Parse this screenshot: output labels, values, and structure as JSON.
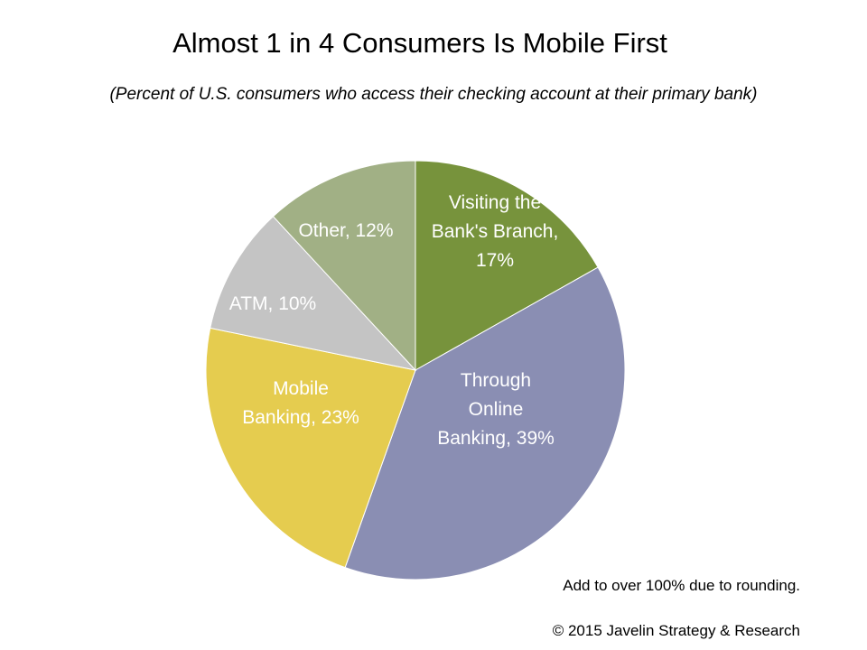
{
  "chart_data": {
    "type": "pie",
    "title": "Almost 1 in 4 Consumers Is Mobile First",
    "subtitle": "(Percent of U.S. consumers who access their checking account at their primary bank)",
    "unit": "%",
    "slices": [
      {
        "label": "Visiting the Bank's Branch",
        "value": 17,
        "color": "#77933c",
        "display": [
          "Visiting the",
          "Bank's Branch,",
          "17%"
        ]
      },
      {
        "label": "Through Online Banking",
        "value": 39,
        "color": "#8a8eb3",
        "display": [
          "Through",
          "Online",
          "Banking, 39%"
        ]
      },
      {
        "label": "Mobile Banking",
        "value": 23,
        "color": "#e5cc4f",
        "display": [
          "Mobile",
          "Banking, 23%"
        ]
      },
      {
        "label": "ATM",
        "value": 10,
        "color": "#c4c4c4",
        "display": [
          "ATM, 10%"
        ]
      },
      {
        "label": "Other",
        "value": 12,
        "color": "#a1b085",
        "display": [
          "Other, 12%"
        ]
      }
    ],
    "start_angle_deg": 0,
    "direction": "clockwise",
    "legend": "none"
  },
  "footnote": "Add to over 100% due to rounding.",
  "copyright": "© 2015 Javelin Strategy & Research"
}
